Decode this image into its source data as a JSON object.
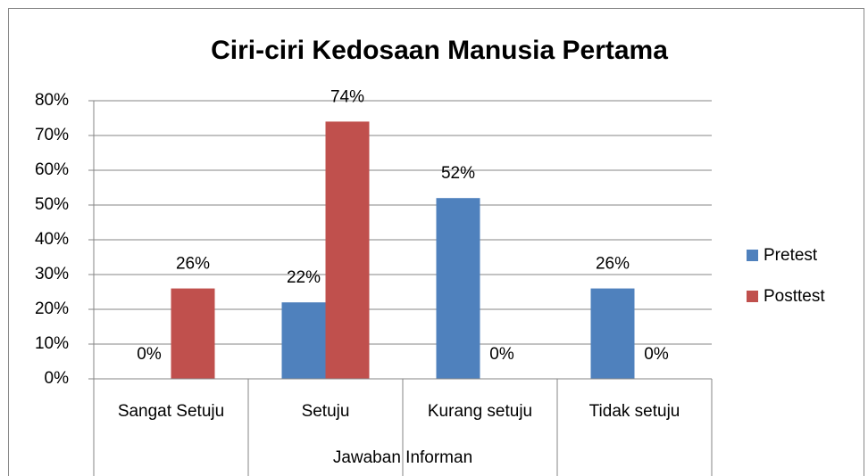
{
  "chart_data": {
    "type": "bar",
    "title": "Ciri-ciri Kedosaan Manusia Pertama",
    "x_label": "Jawaban Informan",
    "categories": [
      "Sangat Setuju",
      "Setuju",
      "Kurang setuju",
      "Tidak setuju"
    ],
    "series": [
      {
        "name": "Pretest",
        "color": "#4f81bd",
        "values": [
          0,
          22,
          52,
          26
        ],
        "value_labels": [
          "0%",
          "22%",
          "52%",
          "26%"
        ]
      },
      {
        "name": "Posttest",
        "color": "#c0504d",
        "values": [
          26,
          74,
          0,
          0
        ],
        "value_labels": [
          "26%",
          "74%",
          "0%",
          "0%"
        ]
      }
    ],
    "ylim": [
      0,
      80
    ],
    "yticks": [
      {
        "value": 0,
        "label": "0%"
      },
      {
        "value": 10,
        "label": "10%"
      },
      {
        "value": 20,
        "label": "20%"
      },
      {
        "value": 30,
        "label": "30%"
      },
      {
        "value": 40,
        "label": "40%"
      },
      {
        "value": 50,
        "label": "50%"
      },
      {
        "value": 60,
        "label": "60%"
      },
      {
        "value": 70,
        "label": "70%"
      },
      {
        "value": 80,
        "label": "80%"
      }
    ],
    "grid": true,
    "legend": "right"
  }
}
